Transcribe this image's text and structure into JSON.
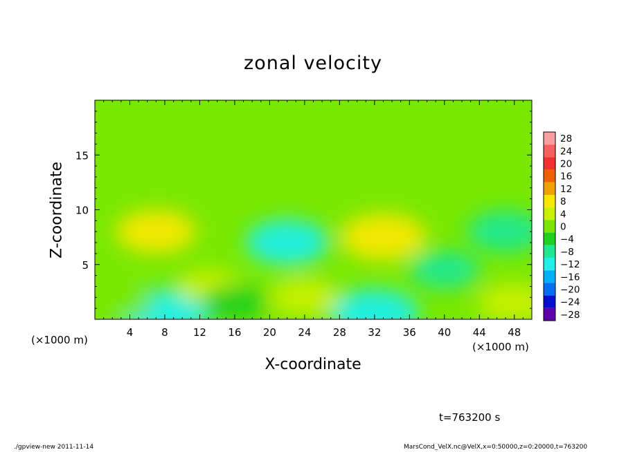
{
  "chart_data": {
    "type": "heatmap",
    "title": "zonal velocity",
    "xlabel": "X-coordinate",
    "ylabel": "Z-coordinate",
    "x_unit_label": "(×1000 m)",
    "xlim": [
      0,
      50
    ],
    "ylim": [
      0,
      20
    ],
    "x_ticks": [
      4,
      8,
      12,
      16,
      20,
      24,
      28,
      32,
      36,
      40,
      44,
      48
    ],
    "y_ticks": [
      5,
      10,
      15
    ],
    "colorbar": {
      "levels": [
        28,
        24,
        20,
        16,
        12,
        8,
        4,
        0,
        -4,
        -8,
        -12,
        -16,
        -20,
        -24,
        -28
      ],
      "colors": [
        "#f8a0a0",
        "#f86060",
        "#f03030",
        "#f06000",
        "#f0a000",
        "#f8e800",
        "#c8f000",
        "#78e800",
        "#20d020",
        "#20e890",
        "#20f0e8",
        "#00b0f8",
        "#0070f0",
        "#0010d0",
        "#6000a8"
      ]
    },
    "features": [
      {
        "x": 7,
        "z": 8,
        "value": 9
      },
      {
        "x": 33,
        "z": 7.5,
        "value": 11
      },
      {
        "x": 22,
        "z": 7,
        "value": -10
      },
      {
        "x": 47,
        "z": 8,
        "value": -8
      },
      {
        "x": 8,
        "z": 0.5,
        "value": -12
      },
      {
        "x": 32,
        "z": 0.5,
        "value": -12
      },
      {
        "x": 40,
        "z": 4.5,
        "value": -6
      },
      {
        "x": 48,
        "z": 1.5,
        "value": 7
      },
      {
        "x": 24,
        "z": 2,
        "value": 6
      },
      {
        "x": 13,
        "z": 3,
        "value": 4
      },
      {
        "x": 3,
        "z": 1.5,
        "value": 3
      },
      {
        "x": 16,
        "z": 1.5,
        "value": -4
      }
    ]
  },
  "timestamp": "t=763200 s",
  "footer": {
    "left": "./gpview-new   2011-11-14",
    "right": "MarsCond_VelX.nc@VelX,x=0:50000,z=0:20000,t=763200"
  }
}
